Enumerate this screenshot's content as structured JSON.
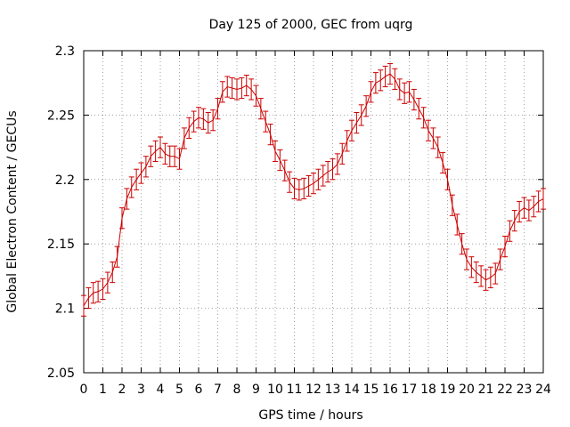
{
  "chart_data": {
    "type": "line",
    "title": "Day 125 of 2000, GEC from uqrg",
    "xlabel": "GPS time / hours",
    "ylabel": "Global Electron Content / GECUs",
    "xlim": [
      0,
      24
    ],
    "ylim": [
      2.05,
      2.3
    ],
    "x_ticks": [
      "0",
      "1",
      "2",
      "3",
      "4",
      "5",
      "6",
      "7",
      "8",
      "9",
      "10",
      "11",
      "12",
      "13",
      "14",
      "15",
      "16",
      "17",
      "18",
      "19",
      "20",
      "21",
      "22",
      "23",
      "24"
    ],
    "y_ticks": [
      "2.05",
      "2.1",
      "2.15",
      "2.2",
      "2.25",
      "2.3"
    ],
    "grid": true,
    "series_color": "#cc0000",
    "error": 0.008,
    "x": [
      0,
      0.25,
      0.5,
      0.75,
      1,
      1.25,
      1.5,
      1.75,
      2,
      2.25,
      2.5,
      2.75,
      3,
      3.25,
      3.5,
      3.75,
      4,
      4.25,
      4.5,
      4.75,
      5,
      5.25,
      5.5,
      5.75,
      6,
      6.25,
      6.5,
      6.75,
      7,
      7.25,
      7.5,
      7.75,
      8,
      8.25,
      8.5,
      8.75,
      9,
      9.25,
      9.5,
      9.75,
      10,
      10.25,
      10.5,
      10.75,
      11,
      11.25,
      11.5,
      11.75,
      12,
      12.25,
      12.5,
      12.75,
      13,
      13.25,
      13.5,
      13.75,
      14,
      14.25,
      14.5,
      14.75,
      15,
      15.25,
      15.5,
      15.75,
      16,
      16.25,
      16.5,
      16.75,
      17,
      17.25,
      17.5,
      17.75,
      18,
      18.25,
      18.5,
      18.75,
      19,
      19.25,
      19.5,
      19.75,
      20,
      20.25,
      20.5,
      20.75,
      21,
      21.25,
      21.5,
      21.75,
      22,
      22.25,
      22.5,
      22.75,
      23,
      23.25,
      23.5,
      23.75,
      24
    ],
    "values": [
      2.102,
      2.108,
      2.112,
      2.113,
      2.115,
      2.12,
      2.128,
      2.14,
      2.17,
      2.185,
      2.194,
      2.2,
      2.205,
      2.21,
      2.218,
      2.222,
      2.225,
      2.22,
      2.218,
      2.218,
      2.216,
      2.232,
      2.24,
      2.245,
      2.248,
      2.247,
      2.244,
      2.246,
      2.255,
      2.268,
      2.272,
      2.271,
      2.27,
      2.271,
      2.273,
      2.27,
      2.265,
      2.255,
      2.245,
      2.235,
      2.222,
      2.215,
      2.207,
      2.198,
      2.193,
      2.192,
      2.193,
      2.195,
      2.197,
      2.2,
      2.203,
      2.206,
      2.208,
      2.212,
      2.22,
      2.23,
      2.238,
      2.244,
      2.25,
      2.257,
      2.268,
      2.275,
      2.277,
      2.28,
      2.282,
      2.278,
      2.27,
      2.267,
      2.268,
      2.262,
      2.255,
      2.248,
      2.238,
      2.232,
      2.225,
      2.213,
      2.2,
      2.18,
      2.165,
      2.15,
      2.138,
      2.132,
      2.128,
      2.125,
      2.122,
      2.124,
      2.127,
      2.138,
      2.148,
      2.16,
      2.168,
      2.175,
      2.178,
      2.176,
      2.179,
      2.183,
      2.185
    ]
  }
}
